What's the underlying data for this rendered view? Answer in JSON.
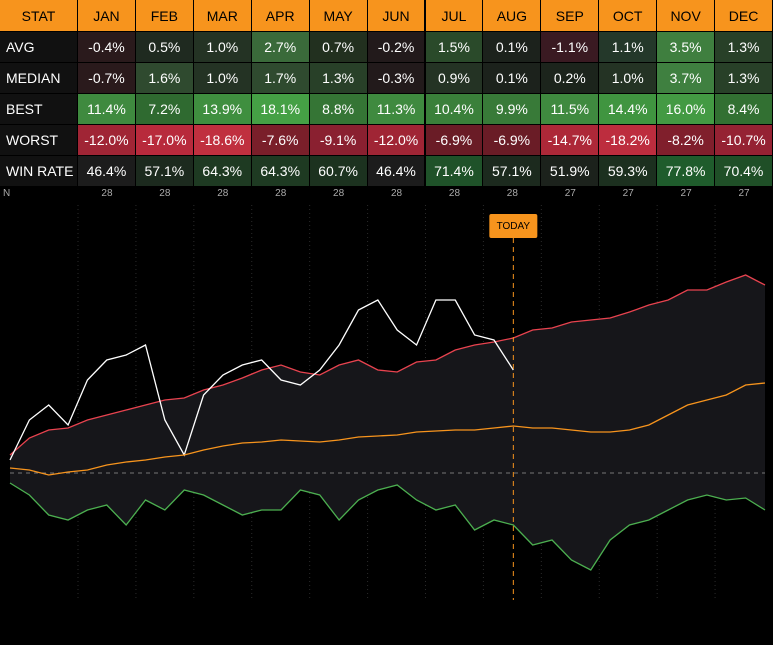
{
  "table": {
    "header": [
      "STAT",
      "JAN",
      "FEB",
      "MAR",
      "APR",
      "MAY",
      "JUN",
      "JUL",
      "AUG",
      "SEP",
      "OCT",
      "NOV",
      "DEC"
    ],
    "header_color": "#f7941d",
    "rows": [
      {
        "label": "AVG",
        "cells": [
          "-0.4%",
          "0.5%",
          "1.0%",
          "2.7%",
          "0.7%",
          "-0.2%",
          "1.5%",
          "0.1%",
          "-1.1%",
          "1.1%",
          "3.5%",
          "1.3%"
        ],
        "colors": [
          "#2a1a1c",
          "#1f2a20",
          "#243324",
          "#3a6a3a",
          "#22301f",
          "#221a1b",
          "#2a4a2a",
          "#1c221c",
          "#3a1a22",
          "#24382a",
          "#3f7f3f",
          "#284028"
        ]
      },
      {
        "label": "MEDIAN",
        "cells": [
          "-0.7%",
          "1.6%",
          "1.0%",
          "1.7%",
          "1.3%",
          "-0.3%",
          "0.9%",
          "0.1%",
          "0.2%",
          "1.0%",
          "3.7%",
          "1.3%"
        ],
        "colors": [
          "#2a1a1c",
          "#2f4a2f",
          "#243324",
          "#2f4a2f",
          "#284028",
          "#221a1b",
          "#243324",
          "#1c221c",
          "#1c241c",
          "#243324",
          "#3f8040",
          "#284028"
        ]
      },
      {
        "label": "BEST",
        "cells": [
          "11.4%",
          "7.2%",
          "13.9%",
          "18.1%",
          "8.8%",
          "11.3%",
          "10.4%",
          "9.9%",
          "11.5%",
          "14.4%",
          "16.0%",
          "8.4%"
        ],
        "colors": [
          "#3f8a3f",
          "#2f6a30",
          "#3f8f3f",
          "#45a045",
          "#357535",
          "#3f8a3f",
          "#3a803a",
          "#387a38",
          "#3f8a3f",
          "#409540",
          "#439a43",
          "#327032"
        ]
      },
      {
        "label": "WORST",
        "cells": [
          "-12.0%",
          "-17.0%",
          "-18.6%",
          "-7.6%",
          "-9.1%",
          "-12.0%",
          "-6.9%",
          "-6.9%",
          "-14.7%",
          "-18.2%",
          "-8.2%",
          "-10.7%"
        ],
        "colors": [
          "#a02535",
          "#b82a3c",
          "#c0303f",
          "#7a1f2a",
          "#8a2030",
          "#a02535",
          "#6a1c26",
          "#6a1c26",
          "#ad2838",
          "#bd2d3e",
          "#801f2c",
          "#952233"
        ]
      },
      {
        "label": "WIN RATE",
        "cells": [
          "46.4%",
          "57.1%",
          "64.3%",
          "64.3%",
          "60.7%",
          "46.4%",
          "71.4%",
          "57.1%",
          "51.9%",
          "59.3%",
          "77.8%",
          "70.4%"
        ],
        "colors": [
          "#1c1c1c",
          "#1c2a1e",
          "#1e3a22",
          "#1e3a22",
          "#1c321f",
          "#1c1c1c",
          "#1f5229",
          "#1c2a1e",
          "#1c221c",
          "#1c301f",
          "#1f5c2c",
          "#1f4f27"
        ]
      }
    ],
    "n_row": {
      "label": "N",
      "values": [
        28,
        28,
        28,
        28,
        28,
        28,
        28,
        28,
        27,
        27,
        27,
        27
      ]
    }
  },
  "chart_data": {
    "type": "line",
    "annotation": "TODAY",
    "ylim": [
      -12.7,
      24.3
    ],
    "series": [
      {
        "color": "#e8434f",
        "values": [
          1.8,
          3.5,
          4.3,
          4.5,
          5.3,
          5.8,
          6.3,
          6.8,
          7.3,
          7.5,
          8.3,
          8.8,
          9.5,
          10.3,
          10.8,
          10.1,
          9.8,
          10.8,
          11.3,
          10.3,
          10.1,
          11.1,
          11.3,
          12.3,
          12.8,
          13.1,
          13.5,
          14.3,
          14.5,
          15.1,
          15.3,
          15.5,
          16.1,
          16.8,
          17.3,
          18.3,
          18.3,
          19.1,
          19.8,
          18.8
        ]
      },
      {
        "color": "#ffffff",
        "values": [
          1.3,
          5.3,
          6.8,
          4.8,
          9.3,
          11.3,
          11.8,
          12.8,
          5.3,
          1.8,
          7.8,
          9.8,
          10.8,
          11.3,
          9.3,
          8.8,
          10.3,
          12.8,
          16.3,
          17.3,
          14.3,
          12.8,
          17.3,
          17.3,
          13.8,
          13.3,
          10.3
        ]
      },
      {
        "color": "#f7941d",
        "values": [
          0.5,
          0.3,
          -0.2,
          0.1,
          0.3,
          0.8,
          1.1,
          1.3,
          1.6,
          1.8,
          2.3,
          2.7,
          3.0,
          3.1,
          3.3,
          3.2,
          3.1,
          3.3,
          3.6,
          3.7,
          3.8,
          4.1,
          4.2,
          4.3,
          4.3,
          4.5,
          4.7,
          4.5,
          4.5,
          4.3,
          4.1,
          4.1,
          4.3,
          4.8,
          5.8,
          6.8,
          7.3,
          7.8,
          8.8,
          9.0
        ]
      },
      {
        "color": "#4caf50",
        "values": [
          -1.0,
          -2.2,
          -4.2,
          -4.7,
          -3.7,
          -3.2,
          -5.2,
          -2.7,
          -3.7,
          -1.7,
          -2.2,
          -3.2,
          -4.2,
          -3.7,
          -3.7,
          -1.7,
          -2.2,
          -4.7,
          -2.7,
          -1.7,
          -1.2,
          -2.7,
          -3.7,
          -3.2,
          -5.7,
          -4.7,
          -5.2,
          -7.2,
          -6.7,
          -8.7,
          -9.7,
          -6.7,
          -5.2,
          -4.7,
          -3.7,
          -2.7,
          -2.2,
          -2.7,
          -2.5,
          -3.7
        ]
      }
    ]
  }
}
